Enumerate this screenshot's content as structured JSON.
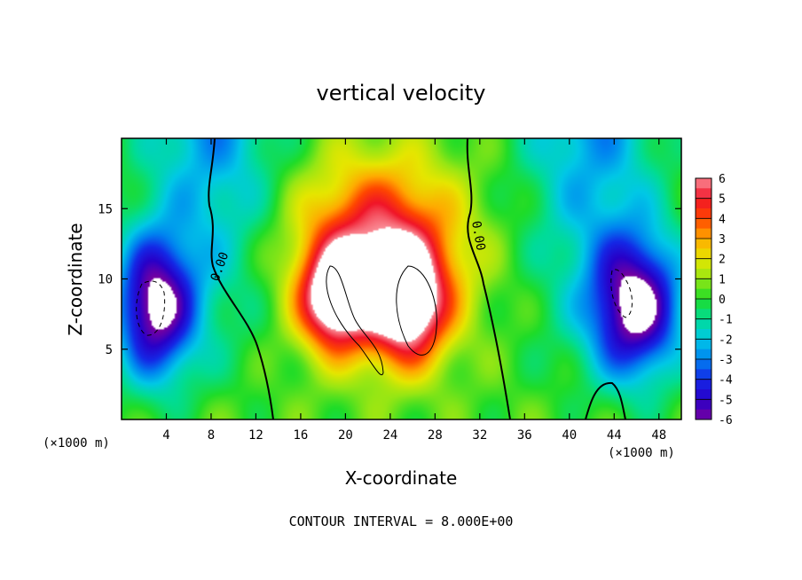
{
  "chart_data": {
    "type": "heatmap",
    "title": "vertical velocity",
    "xlabel": "X-coordinate",
    "ylabel": "Z-coordinate",
    "x_unit_label_left": "(×1000 m)",
    "x_unit_label_right": "(×1000 m)",
    "xlim": [
      0,
      50
    ],
    "ylim": [
      0,
      20
    ],
    "x_ticks": [
      4,
      8,
      12,
      16,
      20,
      24,
      28,
      32,
      36,
      40,
      44,
      48
    ],
    "y_ticks": [
      5,
      10,
      15
    ],
    "colorbar": {
      "ticks": [
        6,
        5,
        4,
        3,
        2,
        1,
        0,
        -1,
        -2,
        -3,
        -4,
        -5,
        -6
      ],
      "min": -6,
      "max": 6,
      "over_color": "#ffffff",
      "under_color": "#ffffff"
    },
    "contour_labels": [
      "0.00",
      "0.00"
    ],
    "footer": "CONTOUR INTERVAL = 8.000E+00",
    "features": [
      {
        "kind": "updraft",
        "x": 23,
        "z": 12,
        "sx": 7,
        "sz": 6,
        "amp": 5.5
      },
      {
        "kind": "updraft",
        "x": 19,
        "z": 8.5,
        "sx": 3,
        "sz": 3.5,
        "amp": 6
      },
      {
        "kind": "updraft",
        "x": 25.5,
        "z": 8,
        "sx": 3.5,
        "sz": 4,
        "amp": 6
      },
      {
        "kind": "downdraft",
        "x": 3,
        "z": 8,
        "sx": 3.5,
        "sz": 5,
        "amp": -6.5
      },
      {
        "kind": "downdraft",
        "x": 46,
        "z": 8,
        "sx": 4,
        "sz": 5,
        "amp": -6.5
      }
    ]
  }
}
